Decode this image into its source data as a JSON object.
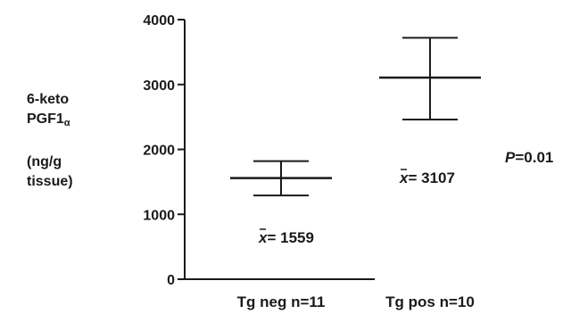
{
  "chart_data": {
    "type": "scatter",
    "subtype": "mean-with-error-bars",
    "categories": [
      "Tg neg n=11",
      "Tg pos n=10"
    ],
    "means": [
      1559,
      3107
    ],
    "upper": [
      1820,
      3720
    ],
    "lower": [
      1290,
      2460
    ],
    "mean_labels": [
      "1559",
      "3107"
    ],
    "mean_prefix": "= ",
    "mean_symbol": "x",
    "ylabel_lines": [
      "6-keto",
      "PGF1",
      "(ng/g",
      "tissue)"
    ],
    "ylabel_subscript": "α",
    "yticks": [
      0,
      1000,
      2000,
      3000,
      4000
    ],
    "ylim": [
      0,
      4000
    ],
    "annotation": {
      "italic": "P",
      "text": "=0.01"
    },
    "grid": false,
    "legend": "none"
  }
}
